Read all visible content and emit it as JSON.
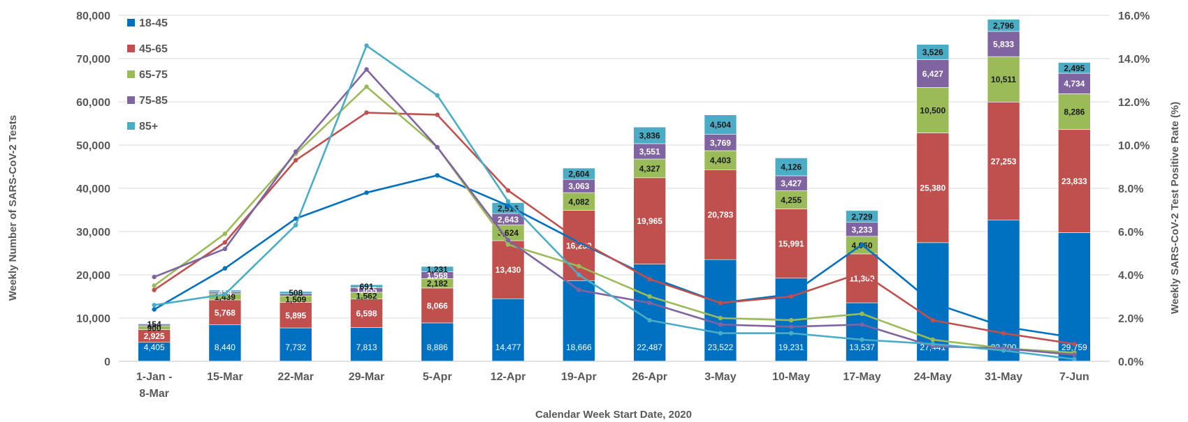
{
  "chart_data": {
    "type": "bar",
    "stacked": true,
    "title": "",
    "xlabel": "Calendar Week Start Date, 2020",
    "ylabel": "Weekly Number of SARS-CoV-2 Tests",
    "y2label": "Weekly SARS-CoV-2 Test Positive Rate (%)",
    "ylim": [
      0,
      80000
    ],
    "y2lim": [
      0,
      16
    ],
    "yticks": [
      "0",
      "10,000",
      "20,000",
      "30,000",
      "40,000",
      "50,000",
      "60,000",
      "70,000",
      "80,000"
    ],
    "y2ticks": [
      "0.0%",
      "2.0%",
      "4.0%",
      "6.0%",
      "8.0%",
      "10.0%",
      "12.0%",
      "14.0%",
      "16.0%"
    ],
    "grid": true,
    "legend_position": "top-left",
    "categories": [
      "1-Jan - 8-Mar",
      "15-Mar",
      "22-Mar",
      "29-Mar",
      "5-Apr",
      "12-Apr",
      "19-Apr",
      "26-Apr",
      "3-May",
      "10-May",
      "17-May",
      "24-May",
      "31-May",
      "7-Jun"
    ],
    "category_lines": [
      [
        "1-Jan -",
        "8-Mar"
      ],
      [
        "15-Mar"
      ],
      [
        "22-Mar"
      ],
      [
        "29-Mar"
      ],
      [
        "5-Apr"
      ],
      [
        "12-Apr"
      ],
      [
        "19-Apr"
      ],
      [
        "26-Apr"
      ],
      [
        "3-May"
      ],
      [
        "10-May"
      ],
      [
        "17-May"
      ],
      [
        "24-May"
      ],
      [
        "31-May"
      ],
      [
        "7-Jun"
      ]
    ],
    "series": [
      {
        "name": "18-45",
        "color": "#0070C0",
        "label_color": "#ffffff",
        "values": [
          4405,
          8440,
          7732,
          7813,
          8886,
          14477,
          18666,
          22487,
          23522,
          19231,
          13537,
          27441,
          32700,
          29759
        ],
        "labels": [
          "4,405",
          "8,440",
          "7,732",
          "7,813",
          "8,886",
          "14,477",
          "18,666",
          "22,487",
          "23,522",
          "19,231",
          "13,537",
          "27,441",
          "32,700",
          "29,759"
        ],
        "rate": [
          2.4,
          4.3,
          6.6,
          7.8,
          8.6,
          7.2,
          5.5,
          3.9,
          2.7,
          3.1,
          5.4,
          2.7,
          1.6,
          1.1
        ]
      },
      {
        "name": "45-65",
        "color": "#C0504D",
        "label_color": "#ffffff",
        "values": [
          2925,
          5768,
          5895,
          6598,
          8066,
          13430,
          16259,
          19965,
          20783,
          15991,
          11309,
          25380,
          27253,
          23833
        ],
        "labels": [
          "2,925",
          "5,768",
          "5,895",
          "6,598",
          "8,066",
          "13,430",
          "16,259",
          "19,965",
          "20,783",
          "15,991",
          "11,309",
          "25,380",
          "27,253",
          "23,833"
        ],
        "rate": [
          3.3,
          5.5,
          9.3,
          11.5,
          11.4,
          7.9,
          5.6,
          3.8,
          2.7,
          3.0,
          4.1,
          1.9,
          1.3,
          0.8
        ]
      },
      {
        "name": "65-75",
        "color": "#9BBB59",
        "label_color": "#1a1a1a",
        "values": [
          900,
          1439,
          1509,
          1562,
          2182,
          3624,
          4082,
          4327,
          4403,
          4255,
          4060,
          10500,
          10511,
          8286
        ],
        "labels": [
          "900",
          "1,439",
          "1,509",
          "1,562",
          "2,182",
          "3,624",
          "4,082",
          "4,327",
          "4,403",
          "4,255",
          "4,060",
          "10,500",
          "10,511",
          "8,286"
        ],
        "rate": [
          3.5,
          5.9,
          9.6,
          12.7,
          9.9,
          5.4,
          4.4,
          3.0,
          2.0,
          1.9,
          2.2,
          1.0,
          0.6,
          0.4
        ]
      },
      {
        "name": "75-85",
        "color": "#8064A2",
        "label_color": "#ffffff",
        "values": [
          350,
          414,
          508,
          1055,
          1568,
          2643,
          3063,
          3551,
          3769,
          3427,
          3233,
          6427,
          5833,
          4734
        ],
        "labels": [
          "",
          "414",
          "",
          "1,055",
          "1,568",
          "2,643",
          "3,063",
          "3,551",
          "3,769",
          "3,427",
          "3,233",
          "6,427",
          "5,833",
          "4,734"
        ],
        "rate": [
          3.9,
          5.2,
          9.7,
          13.5,
          9.9,
          5.6,
          3.3,
          2.7,
          1.7,
          1.6,
          1.7,
          0.7,
          0.6,
          0.3
        ]
      },
      {
        "name": "85+",
        "color": "#4BACC6",
        "label_color": "#1a1a1a",
        "values": [
          154,
          400,
          508,
          691,
          1231,
          2516,
          2604,
          3836,
          4504,
          4126,
          2729,
          3526,
          2796,
          2495
        ],
        "labels": [
          "154",
          "",
          "508",
          "691",
          "1,231",
          "2,516",
          "2,604",
          "3,836",
          "4,504",
          "4,126",
          "2,729",
          "3,526",
          "2,796",
          "2,495"
        ],
        "rate": [
          2.6,
          3.1,
          6.3,
          14.6,
          12.3,
          7.4,
          4.0,
          1.9,
          1.3,
          1.3,
          1.0,
          0.8,
          0.5,
          0.1
        ]
      }
    ]
  }
}
